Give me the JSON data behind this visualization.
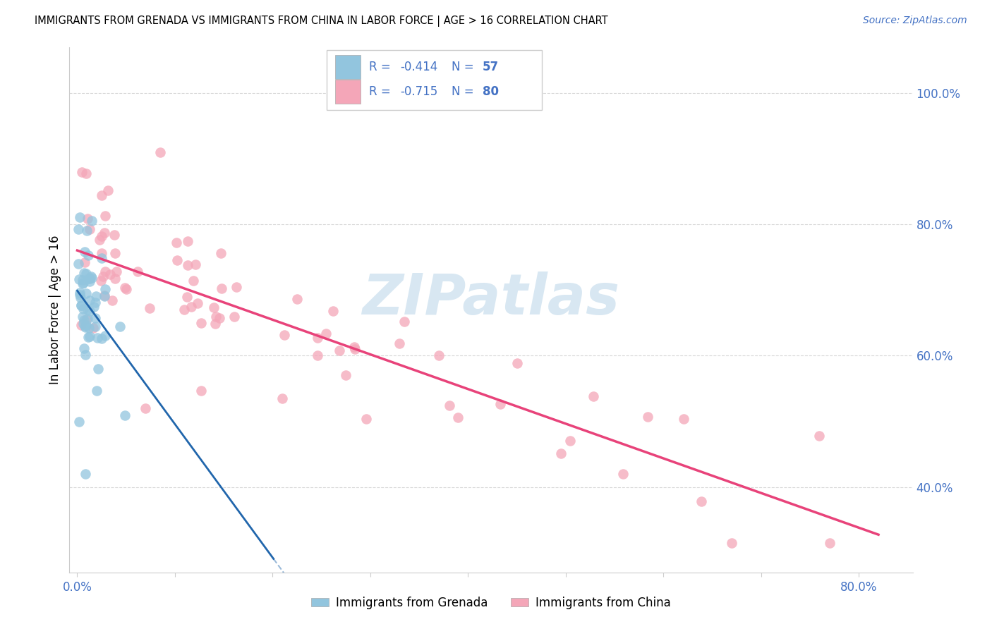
{
  "title": "IMMIGRANTS FROM GRENADA VS IMMIGRANTS FROM CHINA IN LABOR FORCE | AGE > 16 CORRELATION CHART",
  "source": "Source: ZipAtlas.com",
  "ylabel": "In Labor Force | Age > 16",
  "grenada_color": "#92c5de",
  "china_color": "#f4a6b8",
  "grenada_line_color": "#2166ac",
  "china_line_color": "#e8437a",
  "watermark": "ZIPatlas",
  "watermark_color": "#b8d4e8",
  "legend_r_grenada": "-0.414",
  "legend_n_grenada": "57",
  "legend_r_china": "-0.715",
  "legend_n_china": "80",
  "legend_text_color": "#4472c4",
  "axis_color": "#4472c4",
  "grid_color": "#d8d8d8",
  "xlim": [
    -0.008,
    0.855
  ],
  "ylim": [
    0.27,
    1.07
  ],
  "xtick_positions": [
    0.0,
    0.1,
    0.2,
    0.3,
    0.4,
    0.5,
    0.6,
    0.7,
    0.8
  ],
  "xtick_labels": [
    "0.0%",
    "",
    "",
    "",
    "",
    "",
    "",
    "",
    "80.0%"
  ],
  "ytick_positions": [
    0.4,
    0.6,
    0.8,
    1.0
  ],
  "ytick_labels": [
    "40.0%",
    "60.0%",
    "80.0%",
    "100.0%"
  ]
}
